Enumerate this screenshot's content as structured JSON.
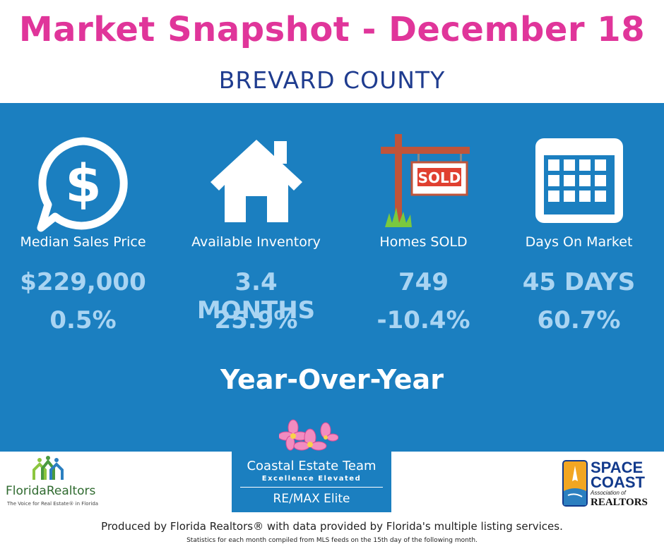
{
  "header": {
    "title": "Market Snapshot - December 18",
    "subtitle": "BREVARD COUNTY"
  },
  "colors": {
    "title": "#e0359a",
    "subtitle": "#1f3c8f",
    "panel": "#1b7fc0",
    "value": "#a9d4f2",
    "box": "#1b7fc0"
  },
  "stats": [
    {
      "icon": "dollar-chat-icon",
      "label": "Median Sales Price",
      "value": "$229,000",
      "change": "0.5%"
    },
    {
      "icon": "house-icon",
      "label": "Available Inventory",
      "value": "3.4 MONTHS",
      "change": "25.9%"
    },
    {
      "icon": "sold-sign-icon",
      "label": "Homes SOLD",
      "value": "749",
      "change": "-10.4%",
      "sign_text": "SOLD"
    },
    {
      "icon": "calendar-icon",
      "label": "Days On Market",
      "value": "45 DAYS",
      "change": "60.7%"
    }
  ],
  "comparison_label": "Year-Over-Year",
  "team": {
    "name": "Coastal Estate Team",
    "tagline": "Excellence Elevated",
    "broker": "RE/MAX Elite"
  },
  "logos": {
    "florida_realtors": {
      "name": "FloridaRealtors",
      "tagline": "The Voice for Real Estate® in Florida"
    },
    "space_coast": {
      "line1": "SPACE",
      "line2": "COAST",
      "line3": "Association of",
      "line4": "REALTORS"
    }
  },
  "footer": {
    "produced_by": "Produced by Florida Realtors® with data provided by Florida's multiple listing services.",
    "note": "Statistics for each month compiled from MLS feeds on the 15th day of the following month."
  }
}
